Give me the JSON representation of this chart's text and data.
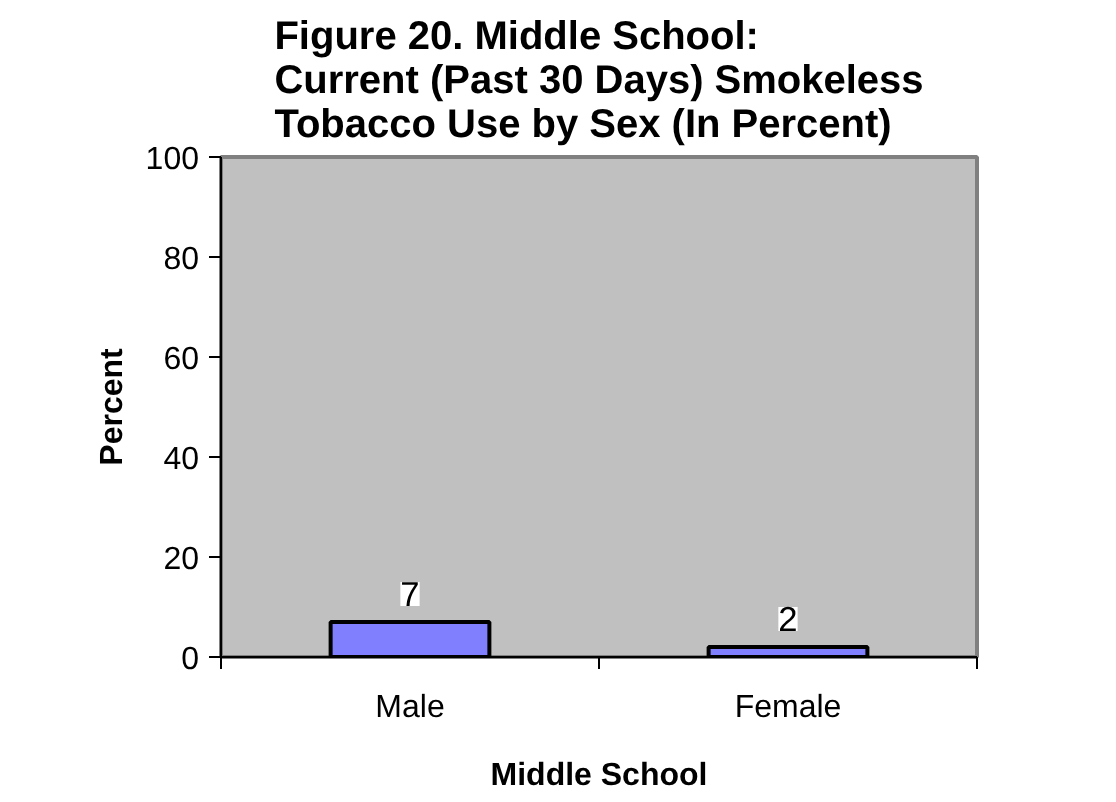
{
  "chart_data": {
    "type": "bar",
    "title": "Figure 20.  Middle School:\nCurrent (Past 30 Days) Smokeless\nTobacco Use by Sex (In Percent)",
    "xlabel": "Middle School",
    "ylabel": "Percent",
    "categories": [
      "Male",
      "Female"
    ],
    "values": [
      7,
      2
    ],
    "color": "#8080ff",
    "ylim": [
      0,
      100
    ],
    "yticks": [
      0,
      20,
      40,
      60,
      80,
      100
    ],
    "data_labels": true,
    "grid": false
  }
}
